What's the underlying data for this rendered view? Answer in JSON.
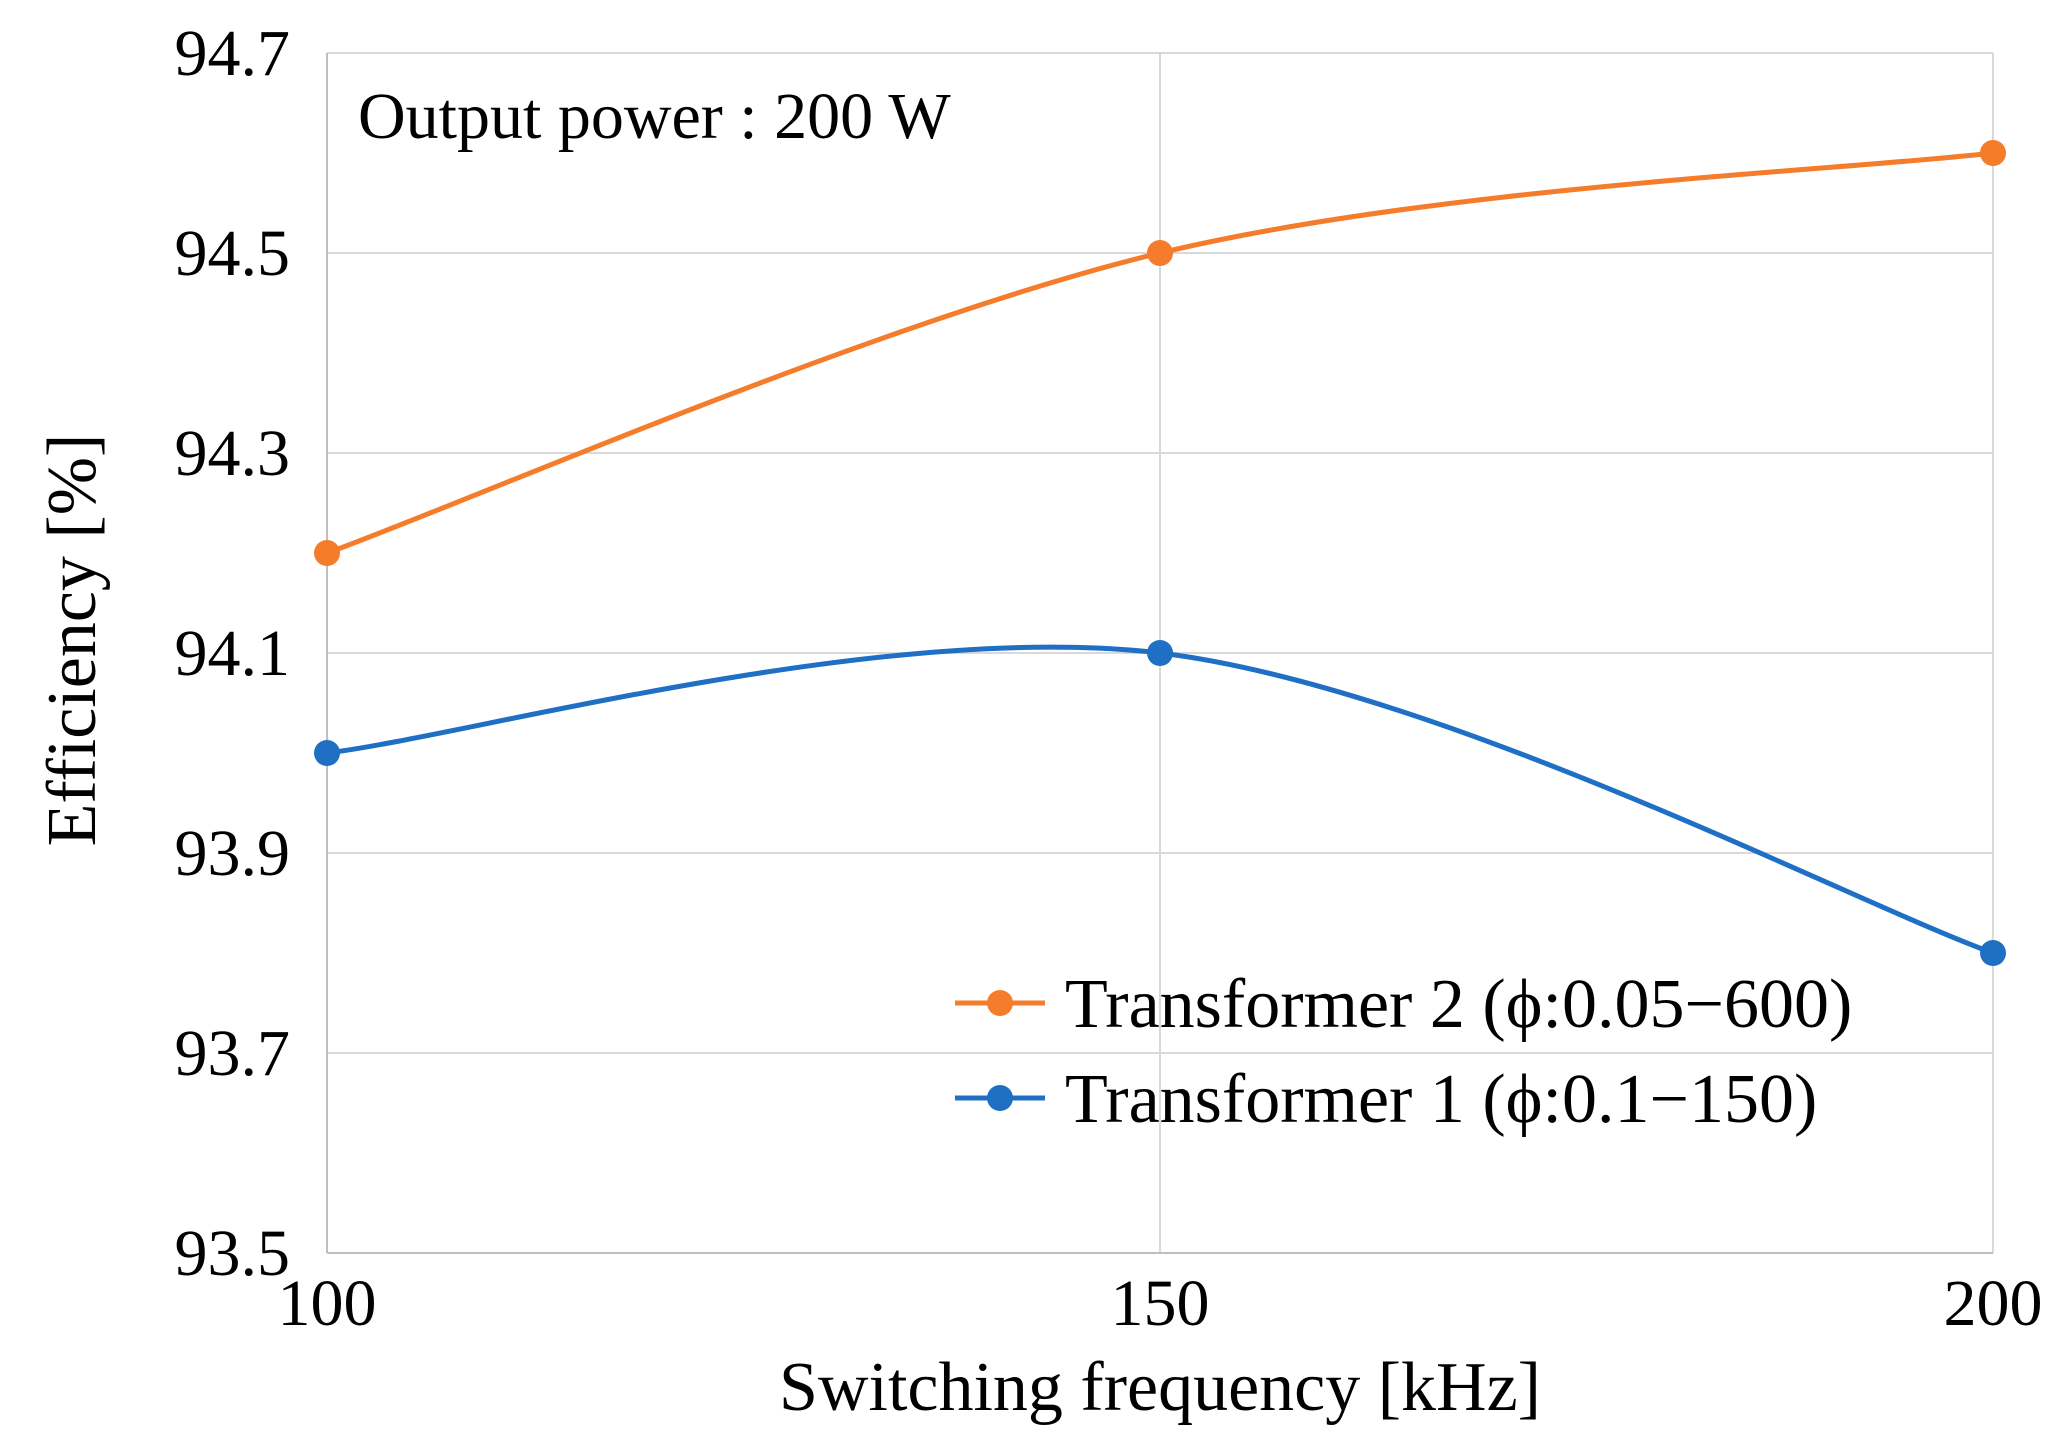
{
  "chart_data": {
    "type": "line",
    "title": "",
    "annotation": "Output power : 200 W",
    "xlabel": "Switching frequency [kHz]",
    "ylabel": "Efficiency [%]",
    "x": [
      100,
      150,
      200
    ],
    "xlim": [
      100,
      200
    ],
    "ylim": [
      93.5,
      94.7
    ],
    "x_ticks": [
      100,
      150,
      200
    ],
    "x_tick_labels": [
      "100",
      "150",
      "200"
    ],
    "y_ticks": [
      93.5,
      93.7,
      93.9,
      94.1,
      94.3,
      94.5,
      94.7
    ],
    "y_tick_labels": [
      "93.5",
      "93.7",
      "93.9",
      "94.1",
      "94.3",
      "94.5",
      "94.7"
    ],
    "grid": true,
    "smooth": true,
    "legend_position": "bottom-right",
    "series": [
      {
        "name": "Transformer 2 (ϕ:0.05−600)",
        "color": "#f47c2a",
        "values": [
          94.2,
          94.5,
          94.6
        ]
      },
      {
        "name": "Transformer 1 (ϕ:0.1−150)",
        "color": "#1f6fc5",
        "values": [
          94.0,
          94.1,
          93.8
        ]
      }
    ]
  }
}
